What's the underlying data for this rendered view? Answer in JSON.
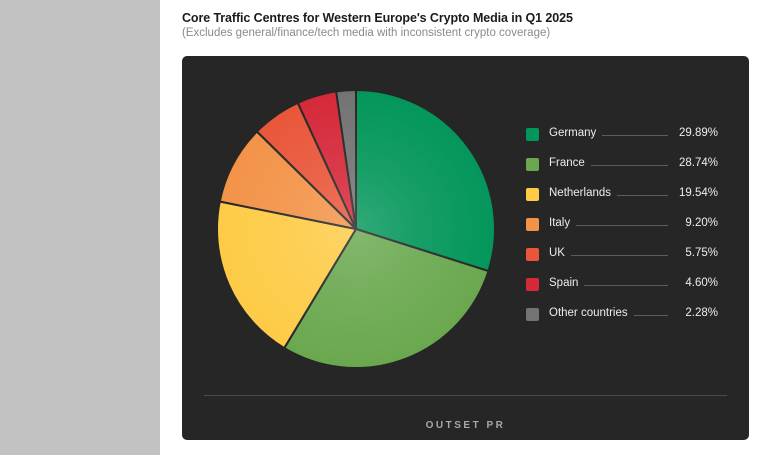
{
  "chart_data": {
    "type": "pie",
    "title": "Core Traffic Centres for Western Europe's Crypto Media in Q1 2025",
    "subtitle": "(Excludes general/finance/tech media with inconsistent crypto coverage)",
    "categories": [
      "Germany",
      "France",
      "Netherlands",
      "Italy",
      "UK",
      "Spain",
      "Other countries"
    ],
    "values": [
      29.89,
      28.74,
      19.54,
      9.2,
      5.75,
      4.6,
      2.28
    ],
    "value_labels": [
      "29.89%",
      "28.74%",
      "19.54%",
      "9.20%",
      "5.75%",
      "4.60%",
      "2.28%"
    ],
    "colors": [
      "#03965a",
      "#6aa84f",
      "#fdcb46",
      "#f39348",
      "#e9563a",
      "#d5293a",
      "#737373"
    ],
    "legend_position": "right"
  },
  "brand": {
    "name": "OUTSET PR"
  }
}
